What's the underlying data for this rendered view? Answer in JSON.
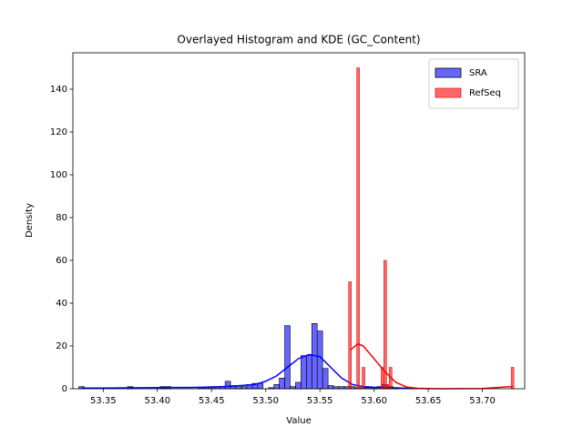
{
  "chart_data": {
    "type": "histogram",
    "title": "Overlayed Histogram and KDE (GC_Content)",
    "x_label": "Value",
    "y_label": "Density",
    "xlim": [
      53.322,
      53.739
    ],
    "ylim": [
      0,
      157
    ],
    "xticks": [
      53.35,
      {
        "value": 53.4,
        "label": "53.40"
      },
      53.45,
      {
        "value": 53.5,
        "label": "53.50"
      },
      53.55,
      {
        "value": 53.6,
        "label": "53.60"
      },
      53.65,
      {
        "value": 53.7,
        "label": "53.70"
      }
    ],
    "yticks": [
      0,
      20,
      40,
      60,
      80,
      100,
      120,
      140
    ],
    "legend": "upper right",
    "series": [
      {
        "name": "SRA",
        "color": "#0000ff",
        "edge_color": "#000000",
        "bins": [
          53.3275,
          53.3325,
          53.3375,
          53.3425,
          53.3475,
          53.3525,
          53.3575,
          53.3625,
          53.3675,
          53.3725,
          53.3775,
          53.3825,
          53.3875,
          53.3925,
          53.3975,
          53.4025,
          53.4075,
          53.4125,
          53.4175,
          53.4225,
          53.4275,
          53.4325,
          53.4375,
          53.4425,
          53.4475,
          53.4525,
          53.4575,
          53.4625,
          53.4675,
          53.4725,
          53.4775,
          53.4825,
          53.4875,
          53.4925,
          53.4975,
          53.5025,
          53.5075,
          53.5125,
          53.5175,
          53.5225,
          53.5275,
          53.5325,
          53.5375,
          53.5425,
          53.5475,
          53.5525,
          53.5575,
          53.5625,
          53.5675,
          53.5725,
          53.5775,
          53.5825,
          53.5875,
          53.5925,
          53.5975,
          53.6025,
          53.6075,
          53.6125,
          53.6175,
          53.6225
        ],
        "values": [
          1,
          0,
          0,
          0,
          0,
          0,
          0,
          0,
          0,
          1,
          0,
          0,
          0,
          0,
          0,
          1,
          1,
          0,
          0,
          0,
          0,
          0,
          0.5,
          0.5,
          1,
          1,
          1,
          3.5,
          1.5,
          1.5,
          1,
          2,
          2.5,
          2.5,
          0,
          0.5,
          2,
          5,
          29.5,
          1,
          3,
          15.5,
          15.5,
          30.5,
          27,
          9.5,
          1.5,
          1,
          1,
          1,
          1,
          0.5,
          0.5,
          0.5,
          0.5,
          1,
          2,
          1,
          0.5
        ],
        "kde_x": [
          53.33,
          53.35,
          53.37,
          53.39,
          53.41,
          53.43,
          53.45,
          53.47,
          53.49,
          53.5,
          53.51,
          53.52,
          53.53,
          53.54,
          53.55,
          53.56,
          53.57,
          53.58,
          53.59,
          53.6,
          53.61,
          53.62,
          53.64
        ],
        "kde_values": [
          0.3,
          0.3,
          0.4,
          0.5,
          0.6,
          0.6,
          0.8,
          1.2,
          2,
          3.5,
          6,
          10,
          14,
          16,
          15,
          10,
          5,
          2,
          1,
          0.7,
          0.6,
          0.4,
          0.1
        ]
      },
      {
        "name": "RefSeq",
        "color": "#ff0000",
        "edge_color": "#d62020",
        "bins": [
          53.5765,
          53.579,
          53.5815,
          53.584,
          53.5865,
          53.589,
          53.5915,
          53.594,
          53.5965,
          53.599,
          53.6015,
          53.604,
          53.6065,
          53.609,
          53.6115,
          53.614,
          53.6165,
          53.619,
          53.6215,
          53.624,
          53.6265,
          53.629,
          53.6315,
          53.634,
          53.6365,
          53.639,
          53.6415,
          53.644,
          53.6465,
          53.649,
          53.6515,
          53.654,
          53.6565,
          53.659,
          53.6615,
          53.664,
          53.6665,
          53.669,
          53.6715,
          53.674,
          53.6765,
          53.679,
          53.6815,
          53.684,
          53.6865,
          53.689,
          53.6915,
          53.694,
          53.6965,
          53.699,
          53.7015,
          53.704,
          53.7065,
          53.709,
          53.7115,
          53.714,
          53.7165,
          53.719,
          53.7215,
          53.724,
          53.7265,
          53.729
        ],
        "values": [
          50,
          0,
          0,
          150,
          0,
          10,
          0,
          0,
          0,
          0,
          0,
          0,
          10,
          60,
          2,
          10,
          0,
          0,
          0,
          0,
          0,
          0,
          0,
          0,
          0,
          0,
          0,
          0,
          0,
          0,
          0,
          0,
          0,
          0,
          0,
          0,
          0,
          0,
          0,
          0,
          0,
          0,
          0,
          0,
          0,
          0,
          0,
          0,
          0,
          0,
          0,
          0,
          0,
          0,
          0,
          0,
          0,
          0,
          0,
          0,
          10
        ],
        "kde_x": [
          53.578,
          53.585,
          53.59,
          53.6,
          53.61,
          53.62,
          53.63,
          53.64,
          53.66,
          53.7,
          53.72,
          53.728
        ],
        "kde_values": [
          18,
          21,
          20,
          14,
          8,
          3,
          0.8,
          0.2,
          0,
          0.1,
          0.8,
          1
        ]
      }
    ]
  }
}
